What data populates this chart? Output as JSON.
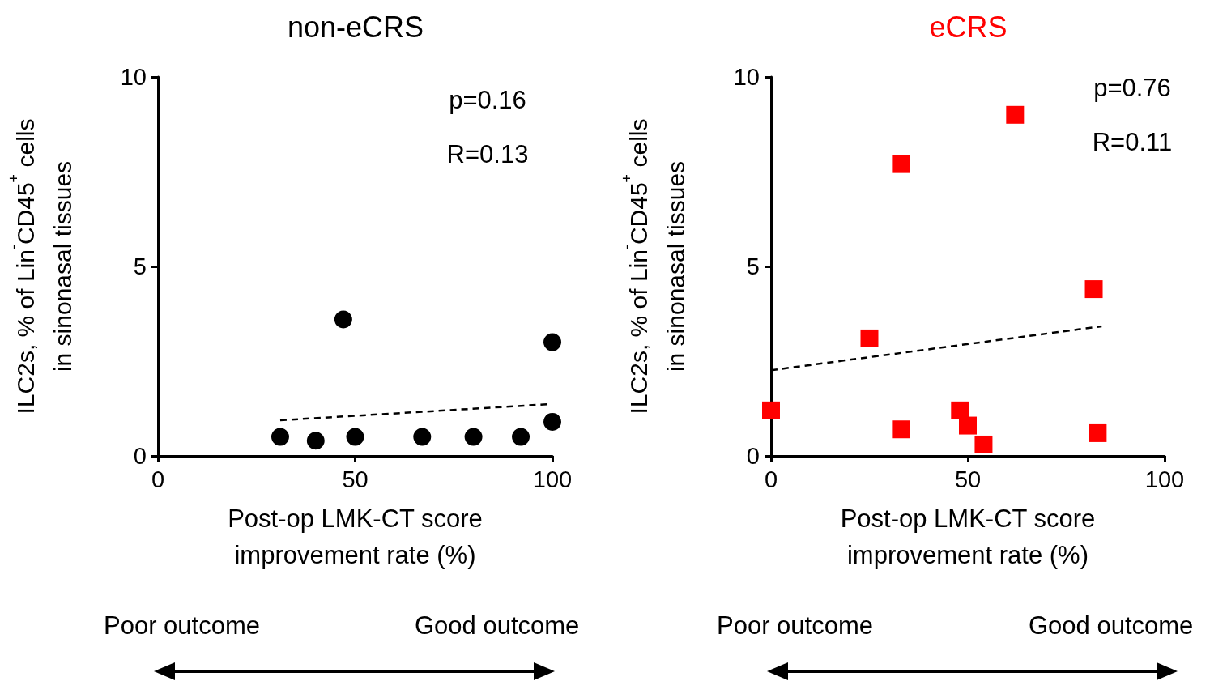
{
  "chart_data": [
    {
      "type": "scatter",
      "title": "non-eCRS",
      "xlabel": "Post-op LMK-CT score\nimprovement rate (%)",
      "ylabel": "ILC2s, % of Lin$^{-}$CD45$^{+}$ cells\nin sinonasal tissues",
      "xlim": [
        0,
        100
      ],
      "ylim": [
        0,
        10
      ],
      "xticks": [
        0,
        50,
        100
      ],
      "yticks": [
        0,
        5,
        10
      ],
      "grid": false,
      "annotations": [
        "p=0.16",
        "R=0.13",
        "Poor outcome",
        "Good outcome"
      ],
      "series": [
        {
          "color": "#000000",
          "marker": "circle",
          "x": [
            31,
            40,
            47,
            50,
            67,
            80,
            92,
            100,
            100
          ],
          "values": [
            0.5,
            0.4,
            3.6,
            0.5,
            0.5,
            0.5,
            0.5,
            3.0,
            0.9
          ]
        },
        {
          "type": "line",
          "marker": "none",
          "line_style": "dashed",
          "color": "#000000",
          "x": [
            31,
            100
          ],
          "values": [
            0.94,
            1.37
          ]
        }
      ]
    },
    {
      "type": "scatter",
      "title": "eCRS",
      "xlabel": "Post-op LMK-CT score\nimprovement rate (%)",
      "ylabel": "ILC2s, % of Lin$^{-}$CD45$^{+}$ cells\nin sinonasal tissues",
      "xlim": [
        0,
        100
      ],
      "ylim": [
        0,
        10
      ],
      "xticks": [
        0,
        50,
        100
      ],
      "yticks": [
        0,
        5,
        10
      ],
      "grid": false,
      "annotations": [
        "p=0.76",
        "R=0.11",
        "Poor outcome",
        "Good outcome"
      ],
      "series": [
        {
          "color": "#ff0000",
          "marker": "square",
          "x": [
            0,
            25,
            33,
            33,
            48,
            50,
            54,
            62,
            82,
            83
          ],
          "values": [
            1.2,
            3.1,
            7.7,
            0.7,
            1.2,
            0.8,
            0.3,
            9.0,
            4.4,
            0.6
          ]
        },
        {
          "type": "line",
          "marker": "none",
          "line_style": "dashed",
          "color": "#000000",
          "x": [
            0,
            84
          ],
          "values": [
            2.26,
            3.42
          ]
        }
      ]
    }
  ]
}
